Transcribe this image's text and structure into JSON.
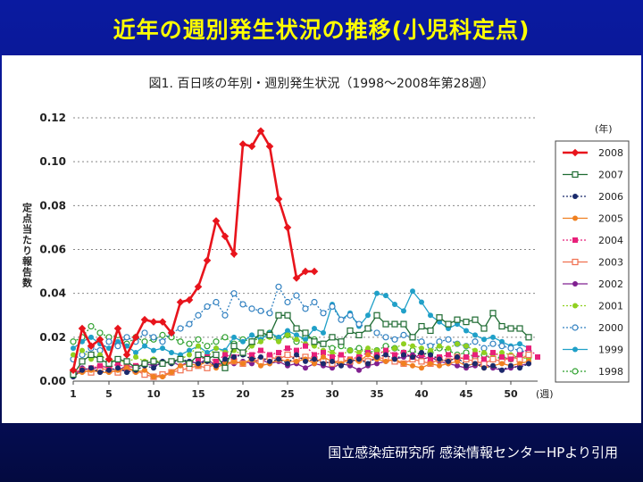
{
  "slide": {
    "title": "近年の週別発生状況の推移(小児科定点)",
    "citation": "国立感染症研究所  感染情報センターHPより引用"
  },
  "colors": {
    "background": "#0a1a8c",
    "title": "#ffff00",
    "citation": "#ffffff"
  },
  "chart_data": {
    "type": "line",
    "title": "図1. 百日咳の年別・週別発生状況（1998〜2008年第28週）",
    "ylabel": "定点当たり報告数",
    "xunit": "(週)",
    "legend_title": "(年)",
    "legend_position": "right",
    "grid": true,
    "ylim": [
      0,
      0.12
    ],
    "xlim": [
      1,
      53
    ],
    "yticks": [
      "0.00",
      "0.02",
      "0.04",
      "0.06",
      "0.08",
      "0.10",
      "0.12"
    ],
    "yticks_values": [
      0,
      0.02,
      0.04,
      0.06,
      0.08,
      0.1,
      0.12
    ],
    "xticks": [
      1,
      5,
      10,
      15,
      20,
      25,
      30,
      35,
      40,
      45,
      50
    ],
    "series": [
      {
        "name": "2008",
        "color": "#e8141c",
        "style": "solid",
        "marker": "filled-diamond",
        "bold": true,
        "x": [
          1,
          2,
          3,
          4,
          5,
          6,
          7,
          8,
          9,
          10,
          11,
          12,
          13,
          14,
          15,
          16,
          17,
          18,
          19,
          20,
          21,
          22,
          23,
          24,
          25,
          26,
          27,
          28
        ],
        "y": [
          0.005,
          0.024,
          0.016,
          0.019,
          0.01,
          0.024,
          0.012,
          0.02,
          0.028,
          0.027,
          0.027,
          0.022,
          0.036,
          0.037,
          0.043,
          0.055,
          0.073,
          0.066,
          0.058,
          0.108,
          0.107,
          0.114,
          0.107,
          0.083,
          0.07,
          0.047,
          0.05,
          0.05
        ]
      },
      {
        "name": "2007",
        "color": "#1e6b32",
        "style": "solid",
        "marker": "open-square",
        "x": [
          1,
          2,
          3,
          4,
          5,
          6,
          7,
          8,
          9,
          10,
          11,
          12,
          13,
          14,
          15,
          16,
          17,
          18,
          19,
          20,
          21,
          22,
          23,
          24,
          25,
          26,
          27,
          28,
          29,
          30,
          31,
          32,
          33,
          34,
          35,
          36,
          37,
          38,
          39,
          40,
          41,
          42,
          43,
          44,
          45,
          46,
          47,
          48,
          49,
          50,
          51,
          52
        ],
        "y": [
          0.003,
          0.009,
          0.012,
          0.01,
          0.008,
          0.01,
          0.009,
          0.006,
          0.008,
          0.009,
          0.008,
          0.009,
          0.01,
          0.008,
          0.012,
          0.01,
          0.012,
          0.006,
          0.016,
          0.013,
          0.018,
          0.022,
          0.021,
          0.03,
          0.03,
          0.024,
          0.022,
          0.018,
          0.017,
          0.02,
          0.018,
          0.023,
          0.021,
          0.024,
          0.03,
          0.026,
          0.026,
          0.026,
          0.02,
          0.025,
          0.023,
          0.029,
          0.026,
          0.028,
          0.027,
          0.028,
          0.024,
          0.031,
          0.025,
          0.024,
          0.024,
          0.02
        ]
      },
      {
        "name": "2006",
        "color": "#1a2a6c",
        "style": "dotted",
        "marker": "filled-circle",
        "x": [
          1,
          2,
          3,
          4,
          5,
          6,
          7,
          8,
          9,
          10,
          11,
          12,
          13,
          14,
          15,
          16,
          17,
          18,
          19,
          20,
          21,
          22,
          23,
          24,
          25,
          26,
          27,
          28,
          29,
          30,
          31,
          32,
          33,
          34,
          35,
          36,
          37,
          38,
          39,
          40,
          41,
          42,
          43,
          44,
          45,
          46,
          47,
          48,
          49,
          50,
          51,
          52
        ],
        "y": [
          0.002,
          0.005,
          0.006,
          0.004,
          0.005,
          0.006,
          0.004,
          0.005,
          0.007,
          0.006,
          0.009,
          0.008,
          0.01,
          0.009,
          0.008,
          0.009,
          0.007,
          0.01,
          0.011,
          0.012,
          0.01,
          0.011,
          0.009,
          0.01,
          0.008,
          0.012,
          0.009,
          0.01,
          0.008,
          0.009,
          0.007,
          0.009,
          0.01,
          0.008,
          0.011,
          0.012,
          0.01,
          0.012,
          0.011,
          0.013,
          0.012,
          0.01,
          0.009,
          0.011,
          0.007,
          0.008,
          0.006,
          0.007,
          0.005,
          0.007,
          0.006,
          0.008
        ]
      },
      {
        "name": "2005",
        "color": "#f08020",
        "style": "solid",
        "marker": "filled-circle",
        "x": [
          1,
          2,
          3,
          4,
          5,
          6,
          7,
          8,
          9,
          10,
          11,
          12,
          13,
          14,
          15,
          16,
          17,
          18,
          19,
          20,
          21,
          22,
          23,
          24,
          25,
          26,
          27,
          28,
          29,
          30,
          31,
          32,
          33,
          34,
          35,
          36,
          37,
          38,
          39,
          40,
          41,
          42,
          43,
          44,
          45,
          46,
          47,
          48,
          49,
          50,
          51,
          52
        ],
        "y": [
          0.003,
          0.004,
          0.005,
          0.004,
          0.004,
          0.005,
          0.006,
          0.004,
          0.005,
          0.002,
          0.002,
          0.004,
          0.007,
          0.008,
          0.007,
          0.009,
          0.006,
          0.008,
          0.009,
          0.008,
          0.01,
          0.007,
          0.008,
          0.01,
          0.009,
          0.009,
          0.01,
          0.008,
          0.011,
          0.009,
          0.008,
          0.01,
          0.009,
          0.012,
          0.01,
          0.009,
          0.01,
          0.008,
          0.007,
          0.006,
          0.008,
          0.007,
          0.008,
          0.009,
          0.007,
          0.008,
          0.006,
          0.007,
          0.008,
          0.007,
          0.008,
          0.009
        ]
      },
      {
        "name": "2004",
        "color": "#e8207a",
        "style": "dotted",
        "marker": "filled-square",
        "x": [
          1,
          2,
          3,
          4,
          5,
          6,
          7,
          8,
          9,
          10,
          11,
          12,
          13,
          14,
          15,
          16,
          17,
          18,
          19,
          20,
          21,
          22,
          23,
          24,
          25,
          26,
          27,
          28,
          29,
          30,
          31,
          32,
          33,
          34,
          35,
          36,
          37,
          38,
          39,
          40,
          41,
          42,
          43,
          44,
          45,
          46,
          47,
          48,
          49,
          50,
          51,
          52,
          53
        ],
        "y": [
          0.004,
          0.005,
          0.006,
          0.007,
          0.006,
          0.008,
          0.006,
          0.007,
          0.008,
          0.009,
          0.008,
          0.009,
          0.01,
          0.008,
          0.01,
          0.011,
          0.009,
          0.012,
          0.011,
          0.013,
          0.012,
          0.014,
          0.012,
          0.013,
          0.015,
          0.014,
          0.016,
          0.012,
          0.013,
          0.011,
          0.012,
          0.01,
          0.011,
          0.013,
          0.012,
          0.014,
          0.012,
          0.013,
          0.011,
          0.012,
          0.01,
          0.011,
          0.012,
          0.01,
          0.011,
          0.012,
          0.01,
          0.013,
          0.011,
          0.01,
          0.012,
          0.015,
          0.011
        ]
      },
      {
        "name": "2003",
        "color": "#f07050",
        "style": "solid",
        "marker": "open-square",
        "x": [
          1,
          2,
          3,
          4,
          5,
          6,
          7,
          8,
          9,
          10,
          11,
          12,
          13,
          14,
          15,
          16,
          17,
          18,
          19,
          20,
          21,
          22,
          23,
          24,
          25,
          26,
          27,
          28,
          29,
          30,
          31,
          32,
          33,
          34,
          35,
          36,
          37,
          38,
          39,
          40,
          41,
          42,
          43,
          44,
          45,
          46,
          47,
          48,
          49,
          50,
          51,
          52
        ],
        "y": [
          0.004,
          0.005,
          0.004,
          0.006,
          0.005,
          0.004,
          0.006,
          0.005,
          0.003,
          0.002,
          0.003,
          0.004,
          0.005,
          0.006,
          0.007,
          0.006,
          0.008,
          0.007,
          0.009,
          0.008,
          0.01,
          0.009,
          0.011,
          0.01,
          0.012,
          0.01,
          0.011,
          0.01,
          0.009,
          0.008,
          0.01,
          0.009,
          0.01,
          0.009,
          0.011,
          0.01,
          0.009,
          0.008,
          0.01,
          0.009,
          0.008,
          0.01,
          0.009,
          0.011,
          0.01,
          0.009,
          0.008,
          0.01,
          0.009,
          0.011,
          0.01,
          0.012
        ]
      },
      {
        "name": "2002",
        "color": "#802090",
        "style": "solid",
        "marker": "filled-circle",
        "x": [
          1,
          2,
          3,
          4,
          5,
          6,
          7,
          8,
          9,
          10,
          11,
          12,
          13,
          14,
          15,
          16,
          17,
          18,
          19,
          20,
          21,
          22,
          23,
          24,
          25,
          26,
          27,
          28,
          29,
          30,
          31,
          32,
          33,
          34,
          35,
          36,
          37,
          38,
          39,
          40,
          41,
          42,
          43,
          44,
          45,
          46,
          47,
          48,
          49,
          50,
          51,
          52
        ],
        "y": [
          0.002,
          0.006,
          0.005,
          0.007,
          0.006,
          0.005,
          0.007,
          0.006,
          0.008,
          0.007,
          0.008,
          0.009,
          0.007,
          0.009,
          0.008,
          0.01,
          0.007,
          0.009,
          0.008,
          0.009,
          0.008,
          0.01,
          0.008,
          0.009,
          0.007,
          0.008,
          0.006,
          0.008,
          0.007,
          0.006,
          0.008,
          0.007,
          0.005,
          0.007,
          0.008,
          0.009,
          0.01,
          0.011,
          0.012,
          0.01,
          0.011,
          0.009,
          0.008,
          0.007,
          0.006,
          0.007,
          0.008,
          0.006,
          0.005,
          0.006,
          0.007,
          0.008
        ]
      },
      {
        "name": "2001",
        "color": "#90d020",
        "style": "dotted",
        "marker": "filled-circle",
        "x": [
          1,
          2,
          3,
          4,
          5,
          6,
          7,
          8,
          9,
          10,
          11,
          12,
          13,
          14,
          15,
          16,
          17,
          18,
          19,
          20,
          21,
          22,
          23,
          24,
          25,
          26,
          27,
          28,
          29,
          30,
          31,
          32,
          33,
          34,
          35,
          36,
          37,
          38,
          39,
          40,
          41,
          42,
          43,
          44,
          45,
          46,
          47,
          48,
          49,
          50,
          51,
          52
        ],
        "y": [
          0.012,
          0.014,
          0.01,
          0.012,
          0.009,
          0.01,
          0.008,
          0.011,
          0.009,
          0.01,
          0.008,
          0.009,
          0.01,
          0.012,
          0.016,
          0.011,
          0.015,
          0.013,
          0.014,
          0.012,
          0.016,
          0.018,
          0.02,
          0.018,
          0.021,
          0.019,
          0.017,
          0.016,
          0.014,
          0.013,
          0.012,
          0.014,
          0.013,
          0.015,
          0.014,
          0.013,
          0.015,
          0.017,
          0.016,
          0.015,
          0.014,
          0.016,
          0.015,
          0.017,
          0.016,
          0.014,
          0.013,
          0.012,
          0.013,
          0.012,
          0.011,
          0.01
        ]
      },
      {
        "name": "2000",
        "color": "#3080c0",
        "style": "dotted",
        "marker": "open-circle",
        "x": [
          1,
          2,
          3,
          4,
          5,
          6,
          7,
          8,
          9,
          10,
          11,
          12,
          13,
          14,
          15,
          16,
          17,
          18,
          19,
          20,
          21,
          22,
          23,
          24,
          25,
          26,
          27,
          28,
          29,
          30,
          31,
          32,
          33,
          34,
          35,
          36,
          37,
          38,
          39,
          40,
          41,
          42,
          43,
          44,
          45,
          46,
          47,
          48,
          49,
          50,
          51,
          52
        ],
        "y": [
          0.01,
          0.012,
          0.015,
          0.014,
          0.018,
          0.016,
          0.02,
          0.018,
          0.022,
          0.02,
          0.018,
          0.022,
          0.024,
          0.026,
          0.03,
          0.034,
          0.036,
          0.03,
          0.04,
          0.035,
          0.033,
          0.032,
          0.031,
          0.043,
          0.036,
          0.039,
          0.033,
          0.036,
          0.031,
          0.034,
          0.028,
          0.03,
          0.026,
          0.024,
          0.022,
          0.02,
          0.019,
          0.021,
          0.02,
          0.018,
          0.016,
          0.018,
          0.019,
          0.017,
          0.016,
          0.018,
          0.015,
          0.017,
          0.016,
          0.015,
          0.014,
          0.013
        ]
      },
      {
        "name": "1999",
        "color": "#20a0c8",
        "style": "solid",
        "marker": "filled-circle",
        "x": [
          1,
          2,
          3,
          4,
          5,
          6,
          7,
          8,
          9,
          10,
          11,
          12,
          13,
          14,
          15,
          16,
          17,
          18,
          19,
          20,
          21,
          22,
          23,
          24,
          25,
          26,
          27,
          28,
          29,
          30,
          31,
          32,
          33,
          34,
          35,
          36,
          37,
          38,
          39,
          40,
          41,
          42,
          43,
          44,
          45,
          46,
          47,
          48,
          49,
          50,
          51,
          52
        ],
        "y": [
          0.015,
          0.018,
          0.02,
          0.017,
          0.015,
          0.018,
          0.016,
          0.013,
          0.016,
          0.014,
          0.015,
          0.013,
          0.012,
          0.014,
          0.016,
          0.013,
          0.015,
          0.014,
          0.02,
          0.018,
          0.021,
          0.019,
          0.022,
          0.02,
          0.023,
          0.021,
          0.019,
          0.024,
          0.022,
          0.035,
          0.028,
          0.031,
          0.025,
          0.03,
          0.04,
          0.039,
          0.035,
          0.032,
          0.041,
          0.036,
          0.03,
          0.027,
          0.024,
          0.026,
          0.023,
          0.021,
          0.019,
          0.02,
          0.018,
          0.016,
          0.017,
          0.015
        ]
      },
      {
        "name": "1998",
        "color": "#2ea02e",
        "style": "dotted",
        "marker": "open-circle",
        "x": [
          1,
          2,
          3,
          4,
          5,
          6,
          7,
          8,
          9,
          10,
          11,
          12,
          13,
          14,
          15,
          16,
          17,
          18,
          19,
          20,
          21,
          22,
          23,
          24,
          25,
          26,
          27,
          28,
          29,
          30,
          31,
          32,
          33,
          34,
          35,
          36,
          37,
          38,
          39,
          40,
          41,
          42,
          43,
          44,
          45,
          46,
          47,
          48,
          49,
          50,
          51,
          52
        ],
        "y": [
          0.018,
          0.02,
          0.025,
          0.022,
          0.02,
          0.021,
          0.017,
          0.02,
          0.018,
          0.019,
          0.021,
          0.02,
          0.018,
          0.017,
          0.019,
          0.016,
          0.018,
          0.02,
          0.017,
          0.019,
          0.018,
          0.02,
          0.022,
          0.019,
          0.021,
          0.018,
          0.02,
          0.019,
          0.017,
          0.015,
          0.016,
          0.014,
          0.015,
          0.013,
          0.014,
          0.016,
          0.015,
          0.013,
          0.014,
          0.012,
          0.013,
          0.015,
          0.014,
          0.012,
          0.013,
          0.011,
          0.012,
          0.01,
          0.011,
          0.01,
          0.012,
          0.011
        ]
      }
    ]
  }
}
